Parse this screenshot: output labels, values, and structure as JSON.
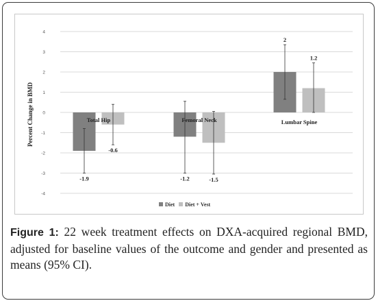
{
  "figure": {
    "label": "Figure 1:",
    "caption": " 22 week treatment effects on DXA-acquired regional BMD, adjusted for baseline values of the outcome and gender and presented as means (95% CI)."
  },
  "chart_data": {
    "type": "bar",
    "title": "",
    "ylabel": "Percent Change in BMD",
    "xlabel": "",
    "ylim": [
      -4,
      4
    ],
    "yticks": [
      "4",
      "3",
      "2",
      "1",
      "0",
      "-1",
      "-2",
      "-3",
      "-4"
    ],
    "ytick_values": [
      4,
      3,
      2,
      1,
      0,
      -1,
      -2,
      -3,
      -4
    ],
    "categories": [
      "Total Hip",
      "Femoral Neck",
      "Lumbar Spine"
    ],
    "series": [
      {
        "name": "Diet",
        "color": "#808080",
        "values": [
          -1.9,
          -1.2,
          2
        ],
        "labels": [
          "-1.9",
          "-1.2",
          "2"
        ],
        "ci_low": [
          -3.0,
          -3.0,
          0.65
        ],
        "ci_high": [
          -0.8,
          0.55,
          3.35
        ]
      },
      {
        "name": "Diet + Vest",
        "color": "#bfbfbf",
        "values": [
          -0.6,
          -1.5,
          1.2
        ],
        "labels": [
          "-0.6",
          "-1.5",
          "1.2"
        ],
        "ci_low": [
          -1.6,
          -3.05,
          0.0
        ],
        "ci_high": [
          0.4,
          0.05,
          2.45
        ]
      }
    ],
    "grid": true,
    "legend": "bottom"
  }
}
